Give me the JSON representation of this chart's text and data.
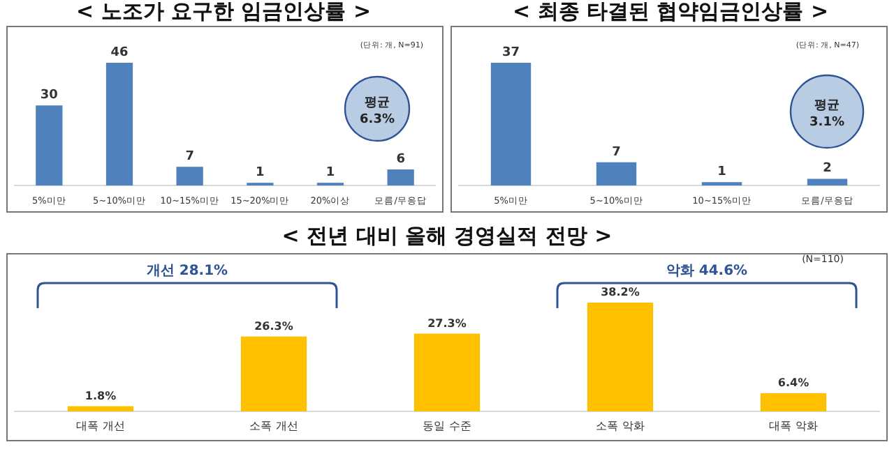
{
  "chart_data": [
    {
      "type": "bar",
      "title": "< 노조가 요구한 임금인상률 >",
      "categories": [
        "5%미만",
        "5~10%미만",
        "10~15%미만",
        "15~20%미만",
        "20%이상",
        "모름/무응답"
      ],
      "values": [
        30,
        46,
        7,
        1,
        1,
        6
      ],
      "color": "#4f81bd",
      "data_labels": true,
      "annotations": [
        "(단위: 개, N=91)",
        "평균 6.3%"
      ]
    },
    {
      "type": "bar",
      "title": "< 최종 타결된 협약임금인상률 >",
      "categories": [
        "5%미만",
        "5~10%미만",
        "10~15%미만",
        "모름/무응답"
      ],
      "values": [
        37,
        7,
        1,
        2
      ],
      "color": "#4f81bd",
      "data_labels": true,
      "annotations": [
        "(단위: 개, N=47)",
        "평균 3.1%"
      ]
    },
    {
      "type": "bar",
      "title": "< 전년 대비 올해 경영실적 전망 >",
      "categories": [
        "대폭 개선",
        "소폭 개선",
        "동일 수준",
        "소폭 악화",
        "대폭 악화"
      ],
      "values": [
        1.8,
        26.3,
        27.3,
        38.2,
        6.4
      ],
      "value_labels": [
        "1.8%",
        "26.3%",
        "27.3%",
        "38.2%",
        "6.4%"
      ],
      "color": "#ffc000",
      "annotations": [
        "(N=110)",
        "개선 28.1%",
        "악화 44.6%"
      ]
    }
  ]
}
